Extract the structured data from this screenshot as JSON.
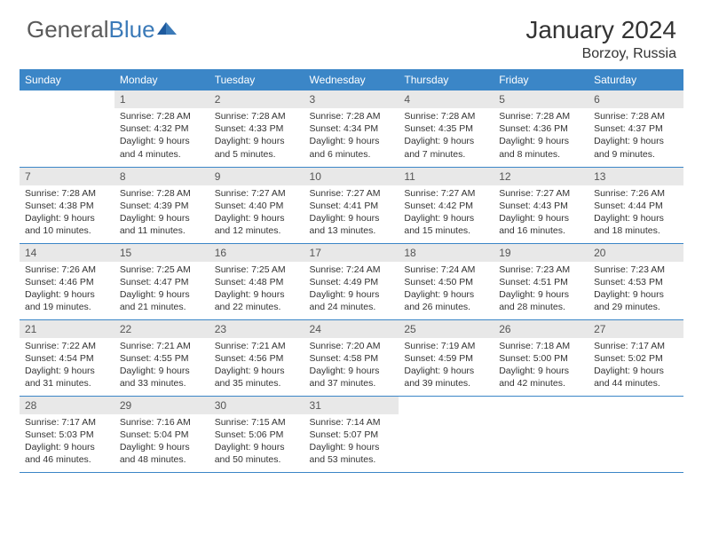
{
  "logo": {
    "text1": "General",
    "text2": "Blue"
  },
  "header": {
    "month": "January 2024",
    "location": "Borzoy, Russia"
  },
  "colors": {
    "header_bg": "#3b86c7",
    "header_text": "#ffffff",
    "daynum_bg": "#e8e8e8",
    "text": "#333333",
    "rule": "#3b86c7"
  },
  "weekdays": [
    "Sunday",
    "Monday",
    "Tuesday",
    "Wednesday",
    "Thursday",
    "Friday",
    "Saturday"
  ],
  "weeks": [
    [
      {
        "n": "",
        "sr": "",
        "ss": "",
        "dl": ""
      },
      {
        "n": "1",
        "sr": "Sunrise: 7:28 AM",
        "ss": "Sunset: 4:32 PM",
        "dl": "Daylight: 9 hours and 4 minutes."
      },
      {
        "n": "2",
        "sr": "Sunrise: 7:28 AM",
        "ss": "Sunset: 4:33 PM",
        "dl": "Daylight: 9 hours and 5 minutes."
      },
      {
        "n": "3",
        "sr": "Sunrise: 7:28 AM",
        "ss": "Sunset: 4:34 PM",
        "dl": "Daylight: 9 hours and 6 minutes."
      },
      {
        "n": "4",
        "sr": "Sunrise: 7:28 AM",
        "ss": "Sunset: 4:35 PM",
        "dl": "Daylight: 9 hours and 7 minutes."
      },
      {
        "n": "5",
        "sr": "Sunrise: 7:28 AM",
        "ss": "Sunset: 4:36 PM",
        "dl": "Daylight: 9 hours and 8 minutes."
      },
      {
        "n": "6",
        "sr": "Sunrise: 7:28 AM",
        "ss": "Sunset: 4:37 PM",
        "dl": "Daylight: 9 hours and 9 minutes."
      }
    ],
    [
      {
        "n": "7",
        "sr": "Sunrise: 7:28 AM",
        "ss": "Sunset: 4:38 PM",
        "dl": "Daylight: 9 hours and 10 minutes."
      },
      {
        "n": "8",
        "sr": "Sunrise: 7:28 AM",
        "ss": "Sunset: 4:39 PM",
        "dl": "Daylight: 9 hours and 11 minutes."
      },
      {
        "n": "9",
        "sr": "Sunrise: 7:27 AM",
        "ss": "Sunset: 4:40 PM",
        "dl": "Daylight: 9 hours and 12 minutes."
      },
      {
        "n": "10",
        "sr": "Sunrise: 7:27 AM",
        "ss": "Sunset: 4:41 PM",
        "dl": "Daylight: 9 hours and 13 minutes."
      },
      {
        "n": "11",
        "sr": "Sunrise: 7:27 AM",
        "ss": "Sunset: 4:42 PM",
        "dl": "Daylight: 9 hours and 15 minutes."
      },
      {
        "n": "12",
        "sr": "Sunrise: 7:27 AM",
        "ss": "Sunset: 4:43 PM",
        "dl": "Daylight: 9 hours and 16 minutes."
      },
      {
        "n": "13",
        "sr": "Sunrise: 7:26 AM",
        "ss": "Sunset: 4:44 PM",
        "dl": "Daylight: 9 hours and 18 minutes."
      }
    ],
    [
      {
        "n": "14",
        "sr": "Sunrise: 7:26 AM",
        "ss": "Sunset: 4:46 PM",
        "dl": "Daylight: 9 hours and 19 minutes."
      },
      {
        "n": "15",
        "sr": "Sunrise: 7:25 AM",
        "ss": "Sunset: 4:47 PM",
        "dl": "Daylight: 9 hours and 21 minutes."
      },
      {
        "n": "16",
        "sr": "Sunrise: 7:25 AM",
        "ss": "Sunset: 4:48 PM",
        "dl": "Daylight: 9 hours and 22 minutes."
      },
      {
        "n": "17",
        "sr": "Sunrise: 7:24 AM",
        "ss": "Sunset: 4:49 PM",
        "dl": "Daylight: 9 hours and 24 minutes."
      },
      {
        "n": "18",
        "sr": "Sunrise: 7:24 AM",
        "ss": "Sunset: 4:50 PM",
        "dl": "Daylight: 9 hours and 26 minutes."
      },
      {
        "n": "19",
        "sr": "Sunrise: 7:23 AM",
        "ss": "Sunset: 4:51 PM",
        "dl": "Daylight: 9 hours and 28 minutes."
      },
      {
        "n": "20",
        "sr": "Sunrise: 7:23 AM",
        "ss": "Sunset: 4:53 PM",
        "dl": "Daylight: 9 hours and 29 minutes."
      }
    ],
    [
      {
        "n": "21",
        "sr": "Sunrise: 7:22 AM",
        "ss": "Sunset: 4:54 PM",
        "dl": "Daylight: 9 hours and 31 minutes."
      },
      {
        "n": "22",
        "sr": "Sunrise: 7:21 AM",
        "ss": "Sunset: 4:55 PM",
        "dl": "Daylight: 9 hours and 33 minutes."
      },
      {
        "n": "23",
        "sr": "Sunrise: 7:21 AM",
        "ss": "Sunset: 4:56 PM",
        "dl": "Daylight: 9 hours and 35 minutes."
      },
      {
        "n": "24",
        "sr": "Sunrise: 7:20 AM",
        "ss": "Sunset: 4:58 PM",
        "dl": "Daylight: 9 hours and 37 minutes."
      },
      {
        "n": "25",
        "sr": "Sunrise: 7:19 AM",
        "ss": "Sunset: 4:59 PM",
        "dl": "Daylight: 9 hours and 39 minutes."
      },
      {
        "n": "26",
        "sr": "Sunrise: 7:18 AM",
        "ss": "Sunset: 5:00 PM",
        "dl": "Daylight: 9 hours and 42 minutes."
      },
      {
        "n": "27",
        "sr": "Sunrise: 7:17 AM",
        "ss": "Sunset: 5:02 PM",
        "dl": "Daylight: 9 hours and 44 minutes."
      }
    ],
    [
      {
        "n": "28",
        "sr": "Sunrise: 7:17 AM",
        "ss": "Sunset: 5:03 PM",
        "dl": "Daylight: 9 hours and 46 minutes."
      },
      {
        "n": "29",
        "sr": "Sunrise: 7:16 AM",
        "ss": "Sunset: 5:04 PM",
        "dl": "Daylight: 9 hours and 48 minutes."
      },
      {
        "n": "30",
        "sr": "Sunrise: 7:15 AM",
        "ss": "Sunset: 5:06 PM",
        "dl": "Daylight: 9 hours and 50 minutes."
      },
      {
        "n": "31",
        "sr": "Sunrise: 7:14 AM",
        "ss": "Sunset: 5:07 PM",
        "dl": "Daylight: 9 hours and 53 minutes."
      },
      {
        "n": "",
        "sr": "",
        "ss": "",
        "dl": ""
      },
      {
        "n": "",
        "sr": "",
        "ss": "",
        "dl": ""
      },
      {
        "n": "",
        "sr": "",
        "ss": "",
        "dl": ""
      }
    ]
  ]
}
